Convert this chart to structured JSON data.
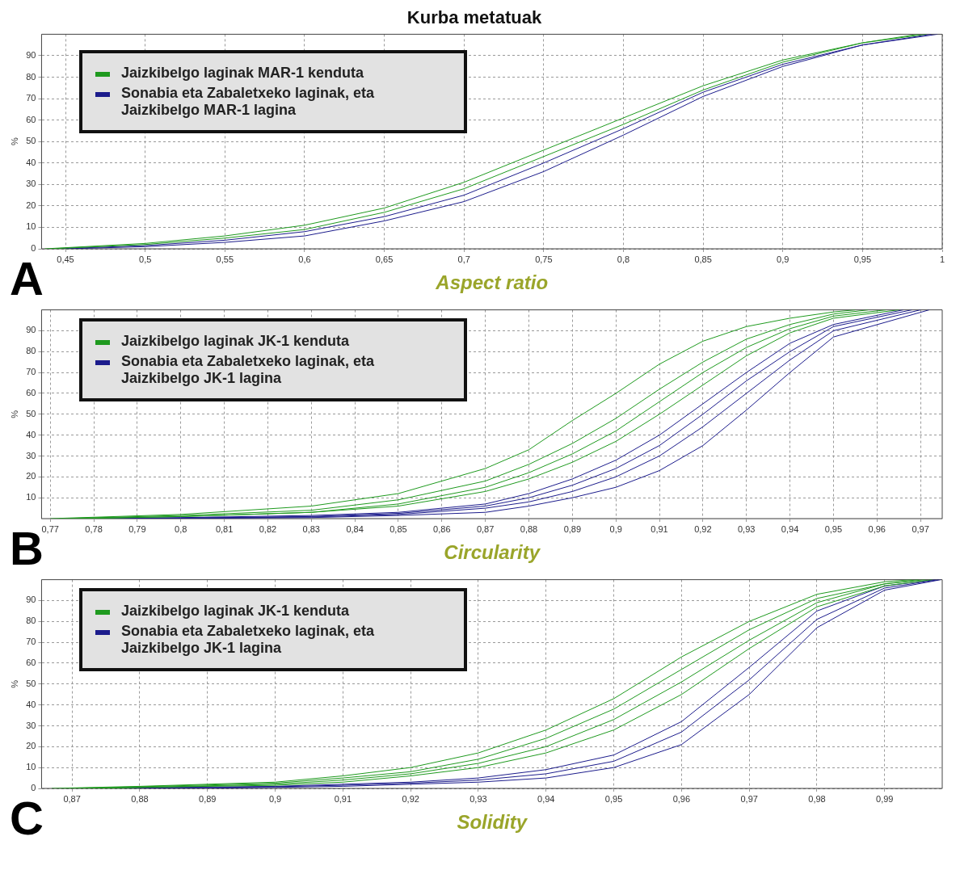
{
  "chart_data": [
    {
      "type": "line",
      "title": "Kurba metatuak",
      "xlabel": "Aspect ratio",
      "ylabel": "%",
      "annotations": [
        "A"
      ],
      "grid": true,
      "legend": "top left",
      "marker": "none",
      "xlim": [
        0.435,
        1.0
      ],
      "xticks": [
        {
          "value": 0.45,
          "label": "0,45"
        },
        {
          "value": 0.5,
          "label": "0,5"
        },
        {
          "value": 0.55,
          "label": "0,55"
        },
        {
          "value": 0.6,
          "label": "0,6"
        },
        {
          "value": 0.65,
          "label": "0,65"
        },
        {
          "value": 0.7,
          "label": "0,7"
        },
        {
          "value": 0.75,
          "label": "0,75"
        },
        {
          "value": 0.8,
          "label": "0,8"
        },
        {
          "value": 0.85,
          "label": "0,85"
        },
        {
          "value": 0.9,
          "label": "0,9"
        },
        {
          "value": 0.95,
          "label": "0,95"
        },
        1
      ],
      "ylim": [
        0,
        100
      ],
      "yticks": [
        0,
        10,
        20,
        30,
        40,
        50,
        60,
        70,
        80,
        90
      ],
      "series": [
        {
          "name": "Jaizkibelgo laginak MAR-1 kenduta",
          "color": "#1f9a1f",
          "x": [
            0.437,
            0.5,
            0.55,
            0.6,
            0.65,
            0.7,
            0.75,
            0.8,
            0.85,
            0.9,
            0.95,
            0.985
          ],
          "values": [
            0,
            2.5,
            6,
            11,
            19,
            31,
            46,
            61,
            76,
            88,
            96,
            100
          ]
        },
        {
          "color": "#1f9a1f",
          "x": [
            0.44,
            0.5,
            0.55,
            0.6,
            0.65,
            0.7,
            0.75,
            0.8,
            0.85,
            0.9,
            0.95,
            0.99
          ],
          "values": [
            0,
            2,
            5,
            9,
            17,
            28,
            43,
            58,
            74,
            87,
            96,
            100
          ]
        },
        {
          "name": "Sonabia eta Zabaletxeko laginak, eta Jaizkibelgo MAR-1 lagina",
          "color": "#1c1c8c",
          "x": [
            0.445,
            0.5,
            0.55,
            0.6,
            0.65,
            0.7,
            0.75,
            0.8,
            0.85,
            0.9,
            0.95,
            0.993
          ],
          "values": [
            0,
            1.5,
            4,
            8,
            15,
            25,
            40,
            56,
            73,
            86,
            95,
            100
          ]
        },
        {
          "color": "#1c1c8c",
          "x": [
            0.45,
            0.5,
            0.55,
            0.6,
            0.65,
            0.7,
            0.75,
            0.8,
            0.85,
            0.9,
            0.95,
            0.997
          ],
          "values": [
            0,
            1,
            3,
            6,
            13,
            22,
            36,
            53,
            71,
            85,
            95,
            100
          ]
        }
      ]
    },
    {
      "type": "line",
      "xlabel": "Circularity",
      "ylabel": "%",
      "annotations": [
        "B"
      ],
      "grid": true,
      "legend": "top left",
      "marker": "none",
      "xlim": [
        0.768,
        0.975
      ],
      "xticks": [
        {
          "value": 0.77,
          "label": "0,77"
        },
        {
          "value": 0.78,
          "label": "0,78"
        },
        {
          "value": 0.79,
          "label": "0,79"
        },
        {
          "value": 0.8,
          "label": "0,8"
        },
        {
          "value": 0.81,
          "label": "0,81"
        },
        {
          "value": 0.82,
          "label": "0,82"
        },
        {
          "value": 0.83,
          "label": "0,83"
        },
        {
          "value": 0.84,
          "label": "0,84"
        },
        {
          "value": 0.85,
          "label": "0,85"
        },
        {
          "value": 0.86,
          "label": "0,86"
        },
        {
          "value": 0.87,
          "label": "0,87"
        },
        {
          "value": 0.88,
          "label": "0,88"
        },
        {
          "value": 0.89,
          "label": "0,89"
        },
        {
          "value": 0.9,
          "label": "0,9"
        },
        {
          "value": 0.91,
          "label": "0,91"
        },
        {
          "value": 0.92,
          "label": "0,92"
        },
        {
          "value": 0.93,
          "label": "0,93"
        },
        {
          "value": 0.94,
          "label": "0,94"
        },
        {
          "value": 0.95,
          "label": "0,95"
        },
        {
          "value": 0.96,
          "label": "0,96"
        },
        {
          "value": 0.97,
          "label": "0,97"
        }
      ],
      "ylim": [
        0,
        100
      ],
      "yticks": [
        10,
        20,
        30,
        40,
        50,
        60,
        70,
        80,
        90
      ],
      "series": [
        {
          "name": "Jaizkibelgo laginak JK-1 kenduta",
          "color": "#1f9a1f",
          "x": [
            0.77,
            0.8,
            0.83,
            0.85,
            0.87,
            0.88,
            0.89,
            0.9,
            0.91,
            0.92,
            0.93,
            0.94,
            0.95,
            0.955
          ],
          "values": [
            0,
            2,
            6,
            12,
            24,
            33,
            47,
            60,
            74,
            85,
            92,
            96,
            99,
            100
          ]
        },
        {
          "color": "#1f9a1f",
          "x": [
            0.772,
            0.8,
            0.83,
            0.85,
            0.87,
            0.88,
            0.89,
            0.9,
            0.91,
            0.92,
            0.93,
            0.94,
            0.95,
            0.958
          ],
          "values": [
            0,
            1.5,
            4,
            9,
            18,
            26,
            36,
            48,
            62,
            75,
            86,
            93,
            98,
            100
          ]
        },
        {
          "color": "#1f9a1f",
          "x": [
            0.774,
            0.8,
            0.83,
            0.85,
            0.87,
            0.88,
            0.89,
            0.9,
            0.91,
            0.92,
            0.93,
            0.94,
            0.95,
            0.962
          ],
          "values": [
            0,
            1,
            3,
            7,
            15,
            22,
            31,
            42,
            56,
            70,
            82,
            91,
            97,
            100
          ]
        },
        {
          "color": "#1f9a1f",
          "x": [
            0.776,
            0.8,
            0.83,
            0.85,
            0.87,
            0.88,
            0.89,
            0.9,
            0.91,
            0.92,
            0.93,
            0.94,
            0.95,
            0.965
          ],
          "values": [
            0,
            1,
            3,
            6,
            13,
            19,
            27,
            37,
            50,
            64,
            78,
            89,
            96,
            100
          ]
        },
        {
          "name": "Sonabia eta Zabaletxeko laginak, eta Jaizkibelgo JK-1 lagina",
          "color": "#1c1c8c",
          "x": [
            0.778,
            0.8,
            0.83,
            0.85,
            0.87,
            0.88,
            0.89,
            0.9,
            0.91,
            0.92,
            0.93,
            0.94,
            0.95,
            0.966
          ],
          "values": [
            0,
            0.5,
            1.5,
            3,
            7,
            12,
            19,
            28,
            40,
            55,
            70,
            84,
            93,
            100
          ]
        },
        {
          "color": "#1c1c8c",
          "x": [
            0.78,
            0.8,
            0.83,
            0.85,
            0.87,
            0.88,
            0.89,
            0.9,
            0.91,
            0.92,
            0.93,
            0.94,
            0.95,
            0.968
          ],
          "values": [
            0,
            0.3,
            1,
            2.5,
            6,
            10,
            16,
            24,
            35,
            50,
            66,
            80,
            92,
            100
          ]
        },
        {
          "color": "#1c1c8c",
          "x": [
            0.782,
            0.8,
            0.83,
            0.85,
            0.87,
            0.88,
            0.89,
            0.9,
            0.91,
            0.92,
            0.93,
            0.94,
            0.95,
            0.97
          ],
          "values": [
            0,
            0.2,
            0.8,
            2,
            5,
            8,
            13,
            20,
            30,
            44,
            60,
            76,
            90,
            100
          ]
        },
        {
          "color": "#1c1c8c",
          "x": [
            0.784,
            0.8,
            0.83,
            0.85,
            0.87,
            0.88,
            0.89,
            0.9,
            0.91,
            0.92,
            0.93,
            0.94,
            0.95,
            0.972
          ],
          "values": [
            0,
            0.1,
            0.5,
            1.5,
            3,
            6,
            10,
            15,
            23,
            35,
            52,
            70,
            87,
            100
          ]
        }
      ]
    },
    {
      "type": "line",
      "xlabel": "Solidity",
      "ylabel": "%",
      "annotations": [
        "C"
      ],
      "grid": true,
      "legend": "top left",
      "marker": "none",
      "xlim": [
        0.8655,
        0.9985
      ],
      "xticks": [
        {
          "value": 0.87,
          "label": "0,87"
        },
        {
          "value": 0.88,
          "label": "0,88"
        },
        {
          "value": 0.89,
          "label": "0,89"
        },
        {
          "value": 0.9,
          "label": "0,9"
        },
        {
          "value": 0.91,
          "label": "0,91"
        },
        {
          "value": 0.92,
          "label": "0,92"
        },
        {
          "value": 0.93,
          "label": "0,93"
        },
        {
          "value": 0.94,
          "label": "0,94"
        },
        {
          "value": 0.95,
          "label": "0,95"
        },
        {
          "value": 0.96,
          "label": "0,96"
        },
        {
          "value": 0.97,
          "label": "0,97"
        },
        {
          "value": 0.98,
          "label": "0,98"
        },
        {
          "value": 0.99,
          "label": "0,99"
        }
      ],
      "ylim": [
        0,
        100
      ],
      "yticks": [
        0,
        10,
        20,
        30,
        40,
        50,
        60,
        70,
        80,
        90
      ],
      "series": [
        {
          "name": "Jaizkibelgo laginak JK-1 kenduta",
          "color": "#1f9a1f",
          "x": [
            0.867,
            0.88,
            0.9,
            0.91,
            0.92,
            0.93,
            0.94,
            0.95,
            0.96,
            0.97,
            0.98,
            0.99,
            0.994
          ],
          "values": [
            0,
            1,
            3,
            6,
            10,
            17,
            28,
            43,
            63,
            80,
            93,
            99,
            100
          ]
        },
        {
          "color": "#1f9a1f",
          "x": [
            0.869,
            0.88,
            0.9,
            0.91,
            0.92,
            0.93,
            0.94,
            0.95,
            0.96,
            0.97,
            0.98,
            0.99,
            0.995
          ],
          "values": [
            0,
            0.8,
            2.5,
            5,
            8,
            14,
            24,
            38,
            57,
            76,
            91,
            98,
            100
          ]
        },
        {
          "color": "#1f9a1f",
          "x": [
            0.871,
            0.88,
            0.9,
            0.91,
            0.92,
            0.93,
            0.94,
            0.95,
            0.96,
            0.97,
            0.98,
            0.99,
            0.996
          ],
          "values": [
            0,
            0.5,
            2,
            4,
            7,
            12,
            20,
            33,
            51,
            71,
            89,
            98,
            100
          ]
        },
        {
          "color": "#1f9a1f",
          "x": [
            0.873,
            0.88,
            0.9,
            0.91,
            0.92,
            0.93,
            0.94,
            0.95,
            0.96,
            0.97,
            0.98,
            0.99,
            0.997
          ],
          "values": [
            0,
            0.5,
            1.5,
            3,
            6,
            10,
            17,
            28,
            45,
            67,
            87,
            97,
            100
          ]
        },
        {
          "name": "Sonabia eta Zabaletxeko laginak, eta Jaizkibelgo JK-1 lagina",
          "color": "#1c1c8c",
          "x": [
            0.875,
            0.88,
            0.9,
            0.91,
            0.92,
            0.93,
            0.94,
            0.95,
            0.96,
            0.97,
            0.98,
            0.99,
            0.9975
          ],
          "values": [
            0,
            0.3,
            1,
            2,
            3,
            5,
            9,
            16,
            32,
            58,
            85,
            97,
            100
          ]
        },
        {
          "color": "#1c1c8c",
          "x": [
            0.876,
            0.885,
            0.9,
            0.91,
            0.92,
            0.93,
            0.94,
            0.95,
            0.96,
            0.97,
            0.98,
            0.99,
            0.998
          ],
          "values": [
            0,
            0.2,
            0.8,
            1.5,
            2.5,
            4,
            7,
            13,
            27,
            52,
            81,
            96,
            100
          ]
        },
        {
          "color": "#1c1c8c",
          "x": [
            0.877,
            0.89,
            0.9,
            0.91,
            0.92,
            0.93,
            0.94,
            0.95,
            0.96,
            0.97,
            0.98,
            0.99,
            0.9983
          ],
          "values": [
            0,
            0.1,
            0.5,
            1,
            2,
            3,
            5,
            10,
            21,
            45,
            77,
            95,
            100
          ]
        }
      ]
    }
  ]
}
